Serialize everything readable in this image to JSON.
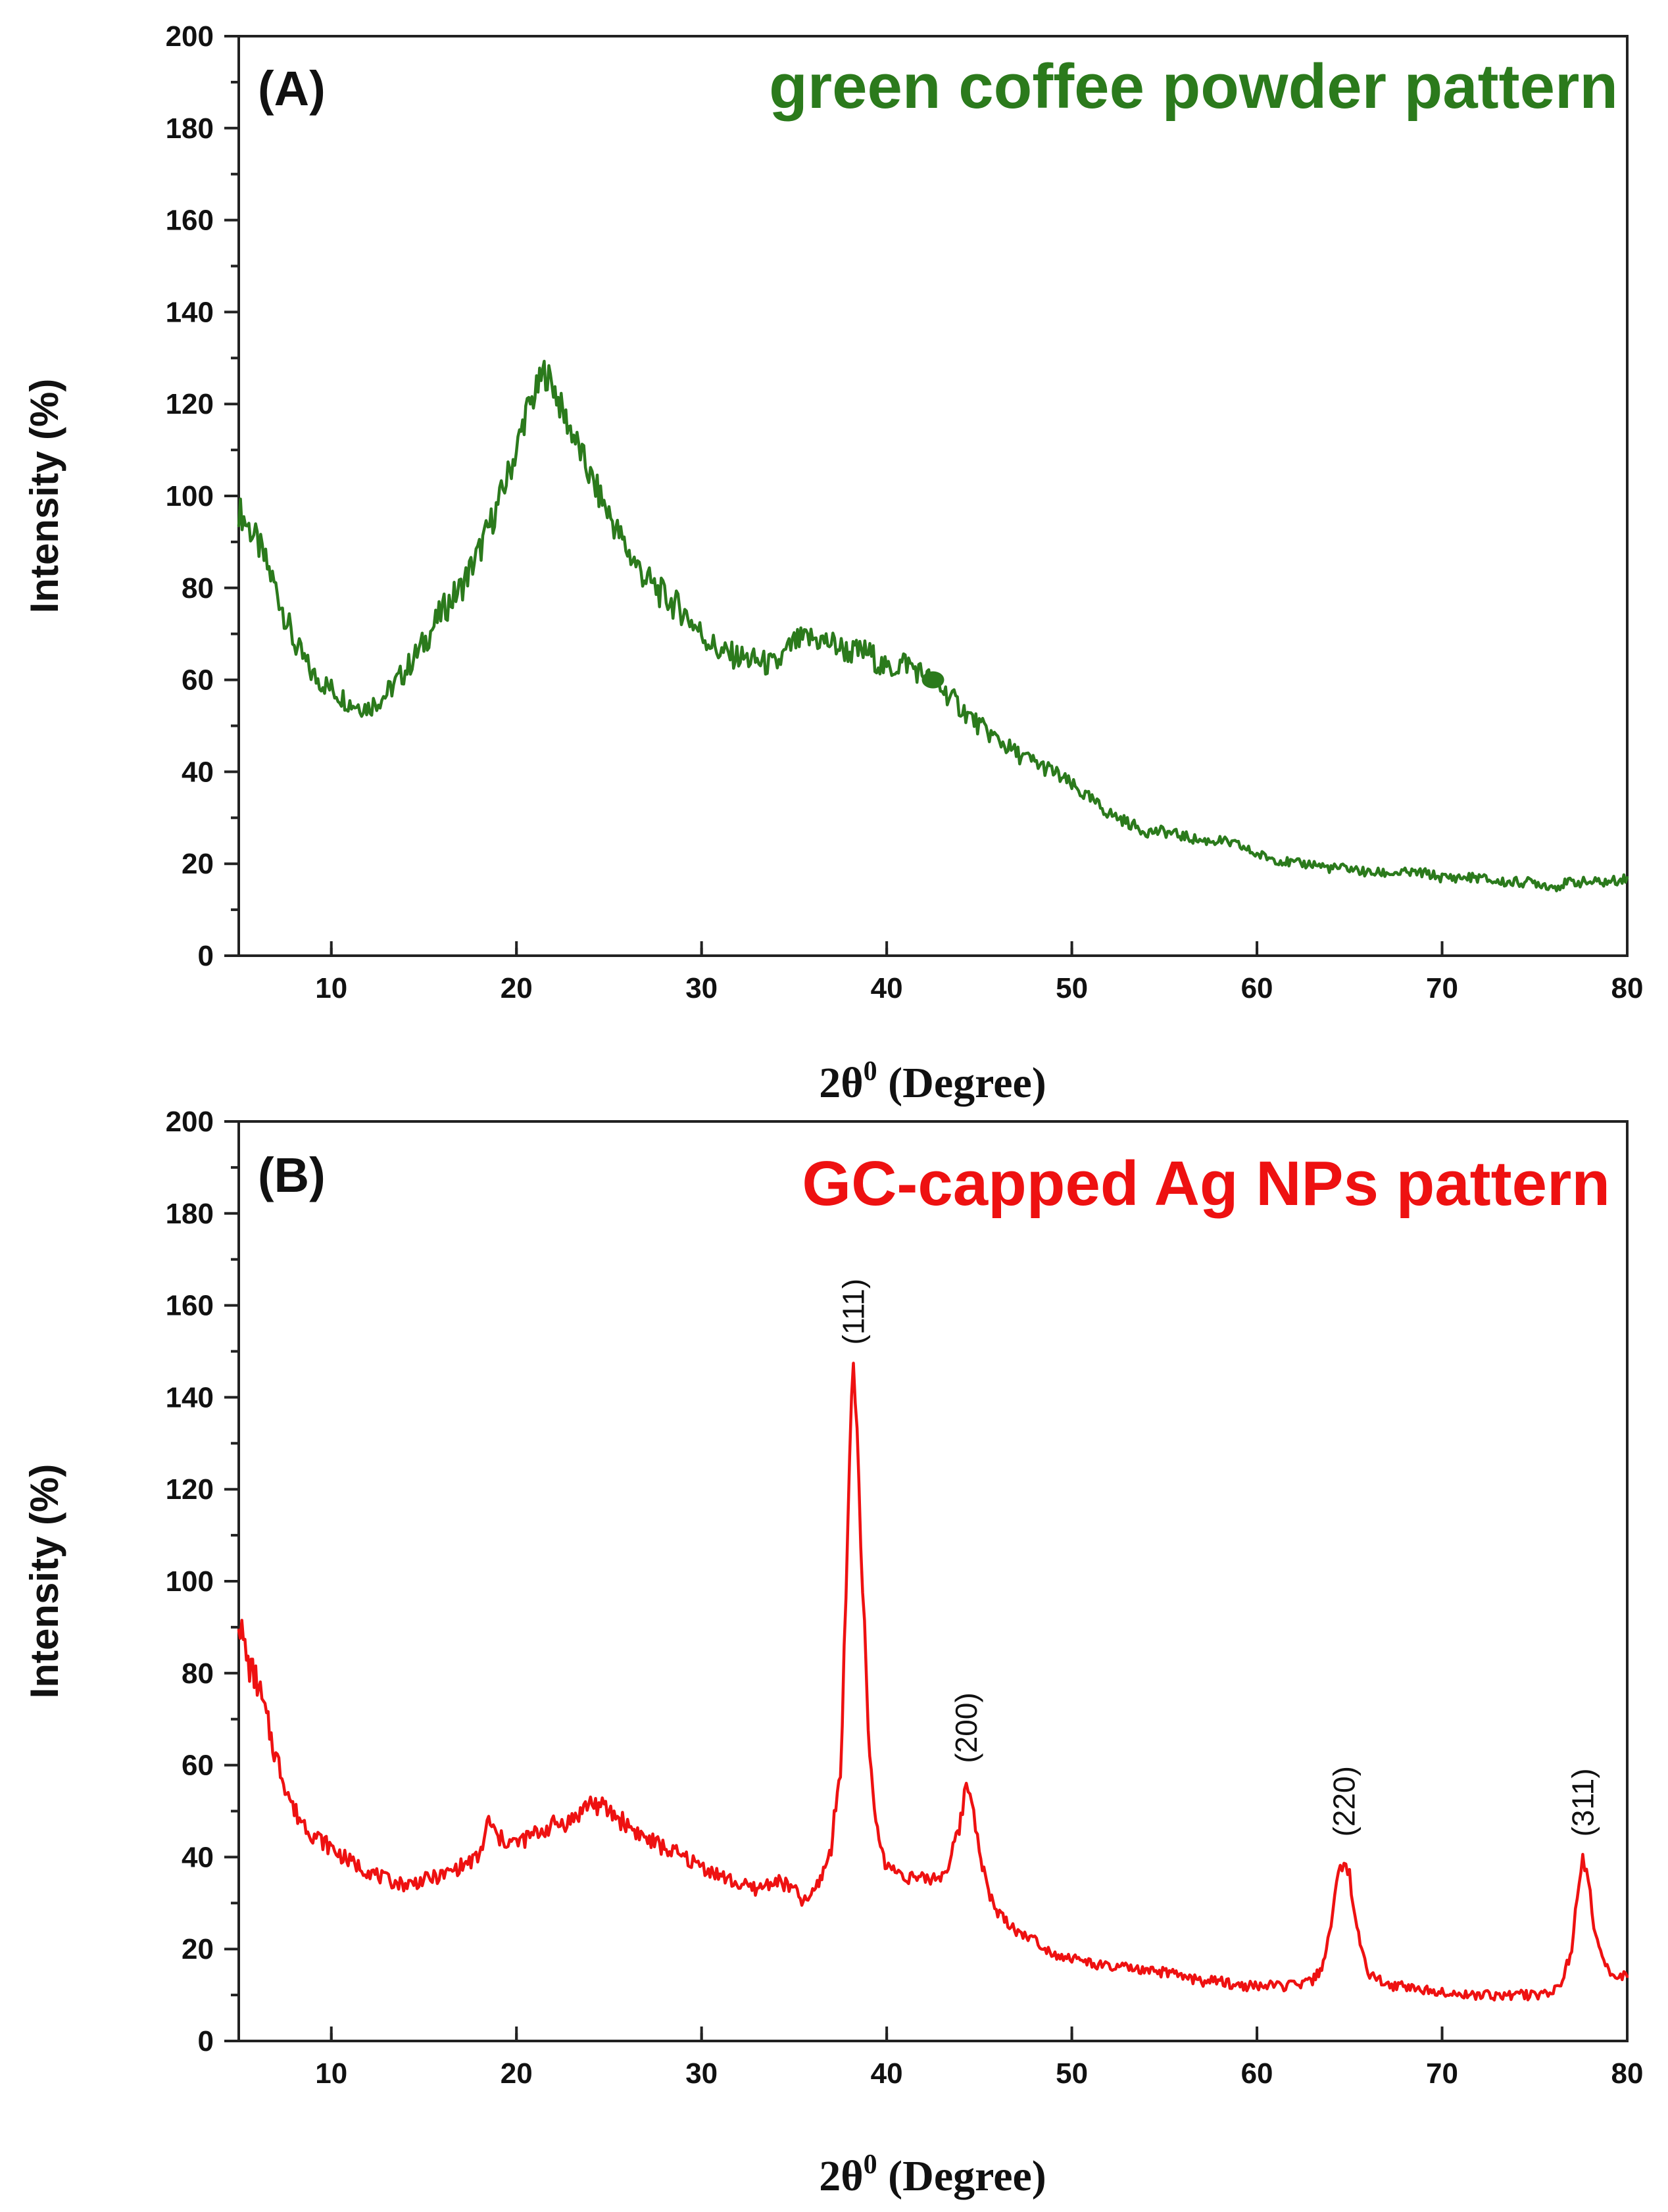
{
  "chart_data": [
    {
      "type": "line",
      "panel_label": "(A)",
      "title": "green coffee powder pattern",
      "title_color": "#2b7a1c",
      "series_color": "#2b7a1c",
      "xlabel_main": "2θ",
      "xlabel_sup": "0",
      "xlabel_rest": " (Degree)",
      "ylabel": "Intensity (%)",
      "xlim": [
        5,
        80
      ],
      "ylim": [
        0,
        200
      ],
      "xticks": [
        10,
        20,
        30,
        40,
        50,
        60,
        70,
        80
      ],
      "yticks": [
        0,
        20,
        40,
        60,
        80,
        100,
        120,
        140,
        160,
        180,
        200
      ],
      "marker": {
        "x": 42.5,
        "y": 60
      },
      "series": [
        {
          "name": "green coffee powder",
          "x": [
            5,
            6,
            7,
            8,
            9,
            10,
            11,
            12,
            13,
            14,
            15,
            16,
            17,
            18,
            19,
            20,
            20.5,
            21,
            21.5,
            22,
            22.5,
            23,
            24,
            25,
            26,
            27,
            28,
            29,
            30,
            31,
            32,
            33,
            34,
            35,
            36,
            37,
            38,
            39,
            40,
            41,
            42,
            43,
            44,
            45,
            46,
            47,
            48,
            49,
            50,
            51,
            52,
            53,
            54,
            55,
            56,
            57,
            58,
            59,
            60,
            61,
            62,
            63,
            64,
            65,
            66,
            67,
            68,
            69,
            70,
            71,
            72,
            73,
            74,
            75,
            76,
            77,
            78,
            79,
            80
          ],
          "y": [
            97,
            90,
            80,
            68,
            61,
            58,
            55,
            54,
            57,
            62,
            68,
            75,
            80,
            88,
            98,
            110,
            118,
            122,
            127,
            124,
            118,
            114,
            104,
            96,
            88,
            82,
            78,
            75,
            70,
            66,
            65,
            64,
            63,
            68,
            69,
            68,
            66,
            66,
            62,
            64,
            61,
            58,
            54,
            50,
            47,
            44,
            42,
            40,
            37,
            34,
            31,
            29,
            27,
            27,
            26,
            25,
            25,
            24,
            22,
            21,
            20,
            20,
            19,
            19,
            18,
            18,
            18,
            18,
            17,
            17,
            17,
            16,
            16,
            16,
            15,
            16,
            16,
            16,
            17
          ]
        }
      ]
    },
    {
      "type": "line",
      "panel_label": "(B)",
      "title": "GC-capped Ag NPs pattern",
      "title_color": "#ee1111",
      "series_color": "#ee1111",
      "xlabel_main": "2θ",
      "xlabel_sup": "0",
      "xlabel_rest": " (Degree)",
      "ylabel": "Intensity (%)",
      "xlim": [
        5,
        80
      ],
      "ylim": [
        0,
        200
      ],
      "xticks": [
        10,
        20,
        30,
        40,
        50,
        60,
        70,
        80
      ],
      "yticks": [
        0,
        20,
        40,
        60,
        80,
        100,
        120,
        140,
        160,
        180,
        200
      ],
      "annotations": [
        {
          "text": "(111)",
          "x": 38.2,
          "y": 150
        },
        {
          "text": "(200)",
          "x": 44.3,
          "y": 59
        },
        {
          "text": "(220)",
          "x": 64.7,
          "y": 43
        },
        {
          "text": "(311)",
          "x": 77.6,
          "y": 43
        }
      ],
      "series": [
        {
          "name": "GC-capped Ag NPs",
          "x": [
            5,
            5.5,
            6,
            6.5,
            7,
            7.5,
            8,
            9,
            10,
            11,
            12,
            13,
            14,
            15,
            16,
            17,
            18,
            18.5,
            19,
            20,
            21,
            22,
            23,
            24,
            25,
            26,
            27,
            28,
            29,
            30,
            31,
            32,
            33,
            34,
            35,
            35.5,
            36,
            36.5,
            37,
            37.5,
            37.8,
            38.0,
            38.2,
            38.4,
            38.7,
            39,
            39.5,
            40,
            41,
            42,
            43,
            43.5,
            44,
            44.3,
            44.6,
            45,
            45.5,
            46,
            47,
            48,
            49,
            50,
            51,
            52,
            53,
            54,
            55,
            56,
            57,
            58,
            59,
            60,
            61,
            62,
            63,
            63.5,
            64,
            64.4,
            64.7,
            65,
            65.4,
            66,
            67,
            68,
            69,
            70,
            71,
            72,
            73,
            74,
            75,
            76,
            76.5,
            77,
            77.3,
            77.6,
            77.9,
            78.3,
            79,
            80
          ],
          "y": [
            92,
            82,
            78,
            70,
            62,
            56,
            50,
            45,
            42,
            39,
            37,
            35,
            34,
            35,
            36,
            38,
            40,
            48,
            44,
            43,
            45,
            47,
            48,
            52,
            50,
            47,
            44,
            42,
            40,
            38,
            36,
            34,
            33,
            35,
            33,
            30,
            32,
            36,
            42,
            60,
            95,
            130,
            147,
            132,
            100,
            65,
            45,
            38,
            36,
            35,
            36,
            40,
            48,
            56,
            53,
            42,
            32,
            28,
            24,
            22,
            19,
            18,
            17,
            16,
            16,
            15,
            15,
            14,
            13,
            13,
            12,
            12,
            12,
            12,
            13,
            16,
            25,
            36,
            40,
            36,
            24,
            15,
            12,
            12,
            11,
            11,
            10,
            10,
            10,
            10,
            10,
            11,
            13,
            20,
            32,
            39,
            35,
            22,
            15,
            14
          ]
        }
      ]
    }
  ]
}
